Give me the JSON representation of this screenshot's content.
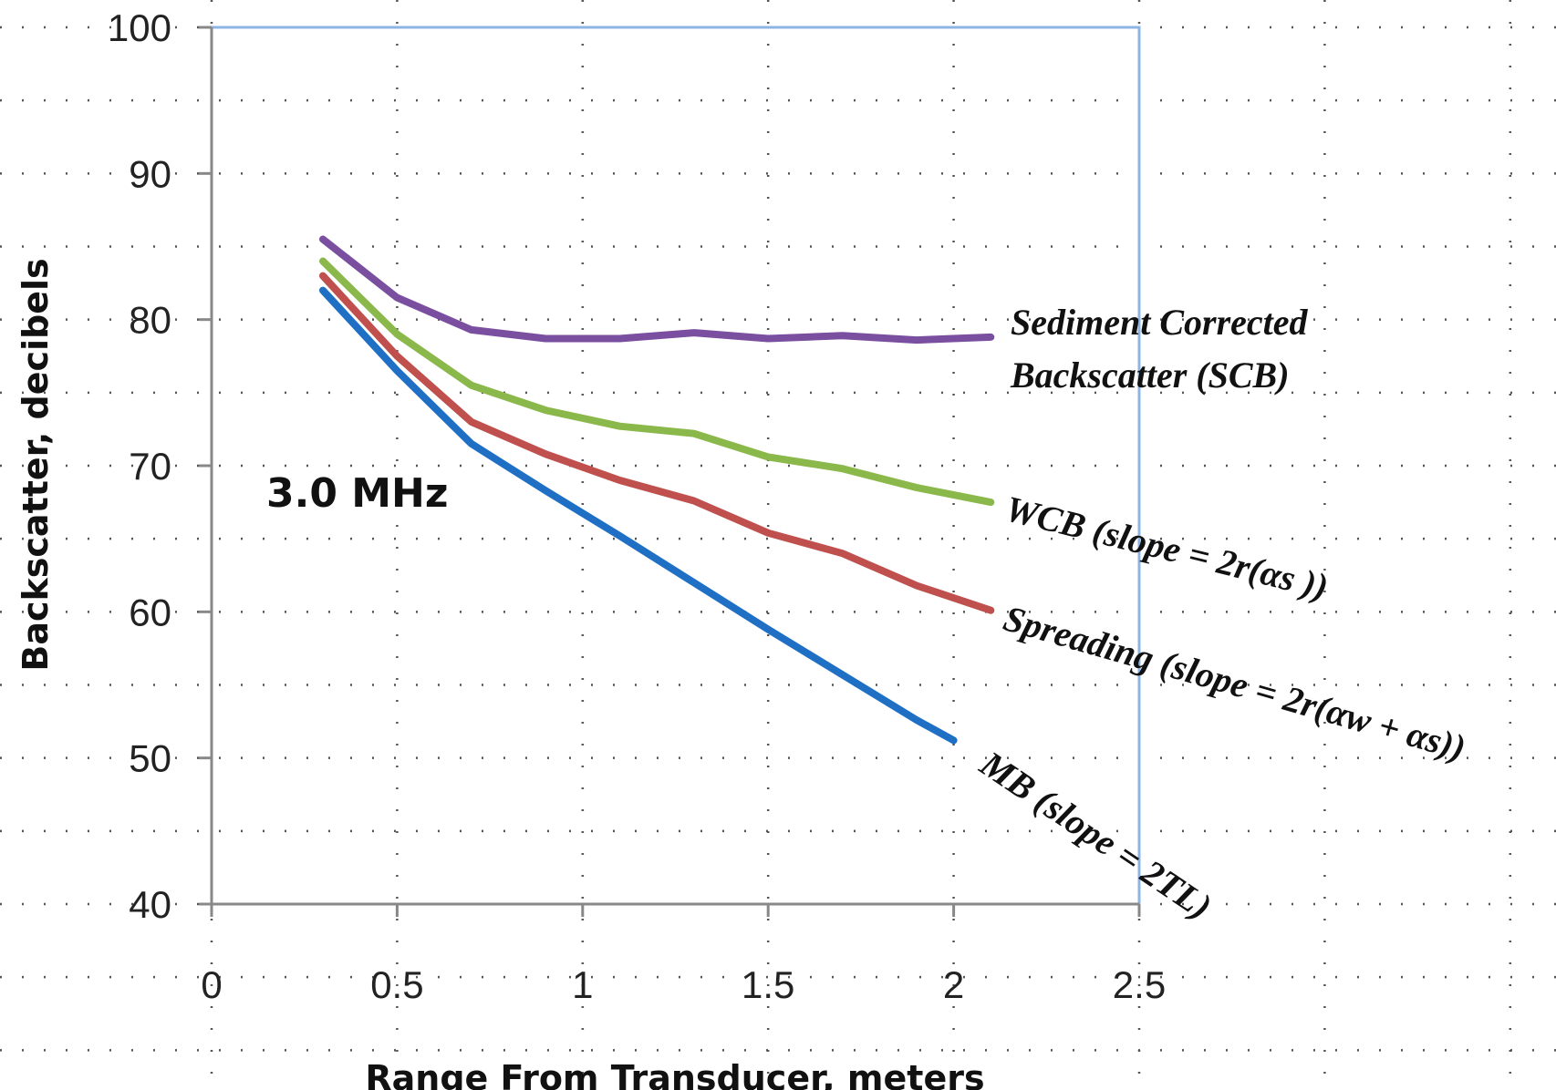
{
  "chart_data": {
    "type": "line",
    "xlabel": "Range From Transducer, meters",
    "ylabel": "Backscatter, decibels",
    "annotation": "3.0 MHz",
    "xlim": [
      0,
      2.5
    ],
    "ylim": [
      40,
      100
    ],
    "x_ticks": [
      "0",
      "0.5",
      "1",
      "1.5",
      "2",
      "2.5"
    ],
    "y_ticks": [
      "40",
      "50",
      "60",
      "70",
      "80",
      "90",
      "100"
    ],
    "x_tick_values": [
      0,
      0.5,
      1,
      1.5,
      2,
      2.5
    ],
    "y_tick_values": [
      40,
      50,
      60,
      70,
      80,
      90,
      100
    ],
    "grid": "dotted",
    "series": [
      {
        "name": "Sediment Corrected Backscatter (SCB)",
        "label_lines": [
          "Sediment Corrected",
          "Backscatter (SCB)"
        ],
        "color": "#7b4fa0",
        "x": [
          0.3,
          0.5,
          0.7,
          0.9,
          1.1,
          1.3,
          1.5,
          1.7,
          1.9,
          2.1
        ],
        "y": [
          85.5,
          81.5,
          79.3,
          78.7,
          78.7,
          79.1,
          78.7,
          78.9,
          78.6,
          78.8
        ]
      },
      {
        "name": "WCB (slope = 2r(αs ))",
        "label_lines": [
          "WCB (slope = 2r(αs ))"
        ],
        "color": "#8ab84a",
        "x": [
          0.3,
          0.5,
          0.7,
          0.9,
          1.1,
          1.3,
          1.5,
          1.7,
          1.9,
          2.1
        ],
        "y": [
          84.0,
          79.0,
          75.5,
          73.8,
          72.7,
          72.2,
          70.6,
          69.8,
          68.5,
          67.5
        ]
      },
      {
        "name": "Spreading (slope = 2r(αw + αs))",
        "label_lines": [
          "Spreading (slope = 2r(αw + αs))"
        ],
        "color": "#c0504d",
        "x": [
          0.3,
          0.5,
          0.7,
          0.9,
          1.1,
          1.3,
          1.5,
          1.7,
          1.9,
          2.1
        ],
        "y": [
          83.0,
          77.5,
          73.0,
          70.8,
          69.0,
          67.6,
          65.4,
          64.0,
          61.8,
          60.1
        ]
      },
      {
        "name": "MB (slope = 2TL)",
        "label_lines": [
          "MB (slope = 2TL)"
        ],
        "color": "#1f6fc5",
        "x": [
          0.3,
          0.5,
          0.7,
          0.9,
          1.1,
          1.3,
          1.5,
          1.7,
          1.9,
          2.0
        ],
        "y": [
          82.0,
          76.5,
          71.5,
          68.3,
          65.2,
          62.0,
          58.8,
          55.7,
          52.6,
          51.2
        ]
      }
    ]
  }
}
